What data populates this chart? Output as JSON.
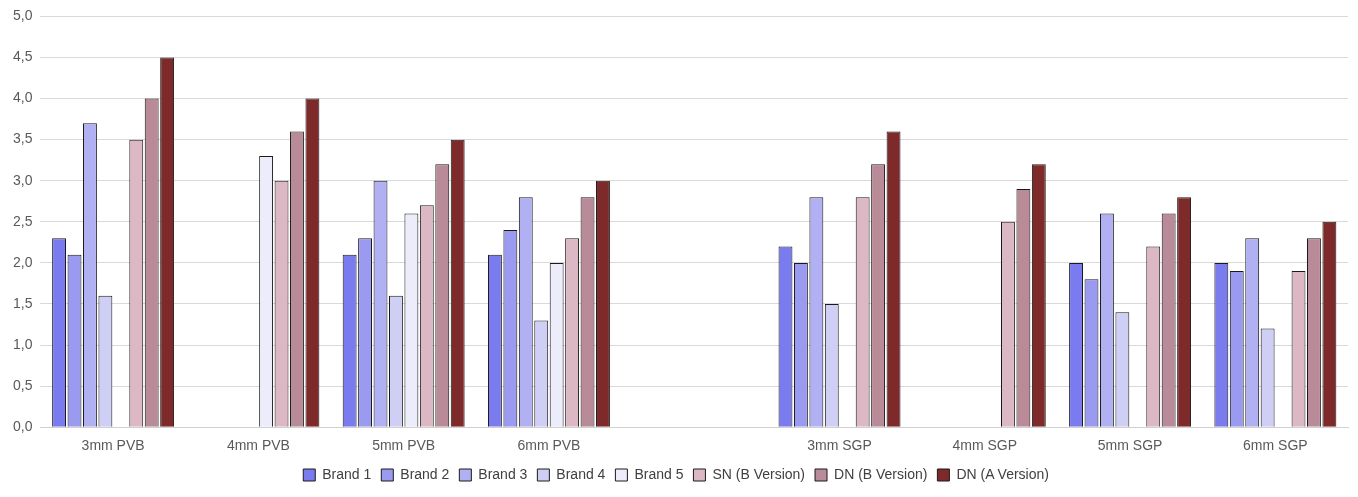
{
  "chart_data": {
    "type": "bar",
    "categories": [
      "3mm PVB",
      "4mm PVB",
      "5mm PVB",
      "6mm PVB",
      null,
      "3mm SGP",
      "4mm SGP",
      "5mm SGP",
      "6mm SGP"
    ],
    "series": [
      {
        "name": "Brand 1",
        "color": "#7b7bf0",
        "values": [
          2.3,
          null,
          2.1,
          2.1,
          null,
          2.2,
          null,
          2.0,
          2.0
        ]
      },
      {
        "name": "Brand 2",
        "color": "#9a9af0",
        "values": [
          2.1,
          null,
          2.3,
          2.4,
          null,
          2.0,
          null,
          1.8,
          1.9
        ]
      },
      {
        "name": "Brand 3",
        "color": "#b0b0f2",
        "values": [
          3.7,
          null,
          3.0,
          2.8,
          null,
          2.8,
          null,
          2.6,
          2.3
        ]
      },
      {
        "name": "Brand 4",
        "color": "#cfcff5",
        "values": [
          1.6,
          null,
          1.6,
          1.3,
          null,
          1.5,
          null,
          1.4,
          1.2
        ]
      },
      {
        "name": "Brand 5",
        "color": "#ececfa",
        "values": [
          null,
          3.3,
          2.6,
          2.0,
          null,
          null,
          null,
          null,
          null
        ]
      },
      {
        "name": "SN (B Version)",
        "color": "#dcb8c4",
        "values": [
          3.5,
          3.0,
          2.7,
          2.3,
          null,
          2.8,
          2.5,
          2.2,
          1.9
        ]
      },
      {
        "name": "DN (B Version)",
        "color": "#b98a98",
        "values": [
          4.0,
          3.6,
          3.2,
          2.8,
          null,
          3.2,
          2.9,
          2.6,
          2.3
        ]
      },
      {
        "name": "DN (A Version)",
        "color": "#7f2a2a",
        "values": [
          4.5,
          4.0,
          3.5,
          3.0,
          null,
          3.6,
          3.2,
          2.8,
          2.5
        ]
      }
    ],
    "ylim": [
      0,
      5
    ],
    "yticks": [
      {
        "value": 0,
        "label": "0,0"
      },
      {
        "value": 0.5,
        "label": "0,5"
      },
      {
        "value": 1,
        "label": "1,0"
      },
      {
        "value": 1.5,
        "label": "1,5"
      },
      {
        "value": 2,
        "label": "2,0"
      },
      {
        "value": 2.5,
        "label": "2,5"
      },
      {
        "value": 3,
        "label": "3,0"
      },
      {
        "value": 3.5,
        "label": "3,5"
      },
      {
        "value": 4,
        "label": "4,0"
      },
      {
        "value": 4.5,
        "label": "4,5"
      },
      {
        "value": 5,
        "label": "5,0"
      }
    ],
    "grid": "y",
    "legend": "bottom"
  }
}
